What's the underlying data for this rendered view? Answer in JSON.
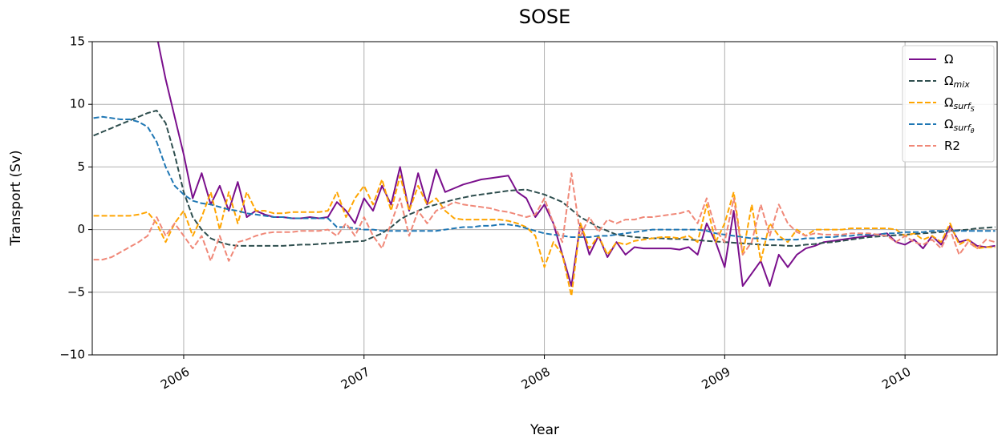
{
  "chart_data": {
    "type": "line",
    "title": "SOSE",
    "xlabel": "Year",
    "ylabel": "Transport (Sv)",
    "grid": true,
    "legend": "upper right",
    "xlim": [
      2005.493,
      2010.511
    ],
    "ylim": [
      -10,
      15
    ],
    "xticks": [
      2006,
      2007,
      2008,
      2009,
      2010
    ],
    "yticks": [
      {
        "value": -10,
        "label": "−10"
      },
      {
        "value": -5,
        "label": "−5"
      },
      0,
      5,
      10,
      15
    ],
    "x": [
      2005.5,
      2005.55,
      2005.6,
      2005.65,
      2005.7,
      2005.75,
      2005.8,
      2005.85,
      2005.9,
      2005.95,
      2006.0,
      2006.05,
      2006.1,
      2006.15,
      2006.2,
      2006.25,
      2006.3,
      2006.35,
      2006.4,
      2006.45,
      2006.5,
      2006.55,
      2006.6,
      2006.65,
      2006.7,
      2006.75,
      2006.8,
      2006.85,
      2006.9,
      2006.95,
      2007.0,
      2007.05,
      2007.1,
      2007.15,
      2007.2,
      2007.25,
      2007.3,
      2007.35,
      2007.4,
      2007.45,
      2007.5,
      2007.55,
      2007.6,
      2007.65,
      2007.7,
      2007.75,
      2007.8,
      2007.85,
      2007.9,
      2007.95,
      2008.0,
      2008.05,
      2008.1,
      2008.15,
      2008.2,
      2008.25,
      2008.3,
      2008.35,
      2008.4,
      2008.45,
      2008.5,
      2008.55,
      2008.6,
      2008.65,
      2008.7,
      2008.75,
      2008.8,
      2008.85,
      2008.9,
      2008.95,
      2009.0,
      2009.05,
      2009.1,
      2009.15,
      2009.2,
      2009.25,
      2009.3,
      2009.35,
      2009.4,
      2009.45,
      2009.5,
      2009.55,
      2009.6,
      2009.65,
      2009.7,
      2009.75,
      2009.8,
      2009.85,
      2009.9,
      2009.95,
      2010.0,
      2010.05,
      2010.1,
      2010.15,
      2010.2,
      2010.25,
      2010.3,
      2010.35,
      2010.4,
      2010.45,
      2010.5
    ],
    "series": [
      {
        "name": "Ω",
        "color": "#7a0f8c",
        "dash": false,
        "values": [
          null,
          null,
          null,
          null,
          null,
          null,
          null,
          15.5,
          12,
          9,
          6,
          2.5,
          4.5,
          2,
          3.5,
          1.5,
          3.8,
          1,
          1.5,
          1.2,
          1.0,
          1,
          0.9,
          0.9,
          1.0,
          0.9,
          1.0,
          2.2,
          1.5,
          0.5,
          2.5,
          1.5,
          3.5,
          2.0,
          5.0,
          1.5,
          4.5,
          2.0,
          4.8,
          3.0,
          3.3,
          3.6,
          3.8,
          4.0,
          4.1,
          4.2,
          4.3,
          3.0,
          2.5,
          1.0,
          2.0,
          0.5,
          -2.0,
          -4.5,
          0.5,
          -2.0,
          -0.5,
          -2.2,
          -1.0,
          -2.0,
          -1.4,
          -1.5,
          -1.5,
          -1.5,
          -1.5,
          -1.6,
          -1.4,
          -2.0,
          0.5,
          -1.0,
          -3.0,
          1.5,
          -4.5,
          -3.5,
          -2.5,
          -4.5,
          -2.0,
          -3.0,
          -2.0,
          -1.5,
          -1.3,
          -1.0,
          -0.9,
          -0.8,
          -0.7,
          -0.6,
          -0.5,
          -0.4,
          -0.3,
          -1.0,
          -1.2,
          -0.8,
          -1.5,
          -0.5,
          -1.2,
          0.3,
          -1.0,
          -0.8,
          -1.3,
          -1.4,
          -1.3
        ]
      },
      {
        "name": "Ω",
        "sub": "mix",
        "color": "#2f4f4f",
        "dash": true,
        "values": [
          7.5,
          7.8,
          8.1,
          8.4,
          8.7,
          9.0,
          9.3,
          9.5,
          8.5,
          6,
          3,
          1,
          0,
          -0.7,
          -1.0,
          -1.2,
          -1.3,
          -1.3,
          -1.3,
          -1.3,
          -1.3,
          -1.3,
          -1.25,
          -1.2,
          -1.2,
          -1.15,
          -1.1,
          -1.05,
          -1.0,
          -0.95,
          -0.9,
          -0.6,
          -0.3,
          0.2,
          0.8,
          1.2,
          1.5,
          1.8,
          2.0,
          2.2,
          2.4,
          2.55,
          2.7,
          2.8,
          2.9,
          3.0,
          3.1,
          3.15,
          3.2,
          3.0,
          2.8,
          2.5,
          2.2,
          1.6,
          1.0,
          0.6,
          0.2,
          -0.1,
          -0.4,
          -0.5,
          -0.6,
          -0.65,
          -0.7,
          -0.7,
          -0.75,
          -0.75,
          -0.8,
          -0.85,
          -0.9,
          -0.95,
          -1.0,
          -1.05,
          -1.1,
          -1.15,
          -1.2,
          -1.25,
          -1.25,
          -1.3,
          -1.3,
          -1.2,
          -1.15,
          -1.05,
          -1.0,
          -0.9,
          -0.8,
          -0.7,
          -0.6,
          -0.55,
          -0.5,
          -0.45,
          -0.4,
          -0.35,
          -0.3,
          -0.25,
          -0.2,
          -0.1,
          -0.05,
          0,
          0.1,
          0.15,
          0.2
        ]
      },
      {
        "name": "Ω",
        "sub": "surf",
        "sub2": "S",
        "color": "#ffa500",
        "dash": true,
        "values": [
          1.1,
          1.1,
          1.1,
          1.1,
          1.1,
          1.2,
          1.4,
          0.5,
          -1.0,
          0.5,
          1.5,
          -0.5,
          1.0,
          3.0,
          0,
          3.0,
          0.5,
          3.0,
          1.5,
          1.5,
          1.3,
          1.3,
          1.4,
          1.4,
          1.4,
          1.4,
          1.5,
          3.0,
          1.0,
          2.5,
          3.5,
          2.0,
          4.0,
          1.5,
          4.3,
          1.5,
          3.5,
          2.0,
          2.5,
          1.5,
          0.9,
          0.8,
          0.8,
          0.8,
          0.8,
          0.8,
          0.7,
          0.5,
          0.2,
          -0.5,
          -3.0,
          -1.0,
          -2.0,
          -5.3,
          0.5,
          -1.5,
          -0.5,
          -2.0,
          -1.0,
          -1.2,
          -0.9,
          -0.8,
          -0.7,
          -0.6,
          -0.6,
          -0.7,
          -0.5,
          -1.0,
          2.0,
          -1.0,
          0.5,
          3.0,
          -2.0,
          2.0,
          -2.5,
          0.5,
          -0.5,
          -1.0,
          0,
          -0.5,
          0,
          0,
          0,
          0,
          0.1,
          0.1,
          0.1,
          0.1,
          0.1,
          0.0,
          -0.5,
          -0.3,
          -0.8,
          -0.5,
          -1.0,
          0.5,
          -1.2,
          -0.8,
          -1.5,
          -1.4,
          -1.4
        ]
      },
      {
        "name": "Ω",
        "sub": "surf",
        "sub2": "θ",
        "color": "#1f77b4",
        "dash": true,
        "values": [
          8.9,
          9.0,
          8.9,
          8.8,
          8.8,
          8.6,
          8.2,
          7.0,
          5.0,
          3.5,
          2.8,
          2.3,
          2.1,
          2.0,
          1.8,
          1.6,
          1.5,
          1.3,
          1.2,
          1.1,
          1.0,
          1.0,
          0.9,
          0.9,
          0.9,
          0.9,
          0.9,
          0.2,
          0.2,
          0.1,
          0,
          0,
          -0.1,
          -0.1,
          -0.1,
          -0.1,
          -0.1,
          -0.1,
          -0.1,
          0,
          0.1,
          0.2,
          0.2,
          0.3,
          0.3,
          0.4,
          0.4,
          0.3,
          0.1,
          -0.1,
          -0.3,
          -0.4,
          -0.5,
          -0.6,
          -0.6,
          -0.6,
          -0.5,
          -0.5,
          -0.4,
          -0.3,
          -0.2,
          -0.1,
          0,
          0,
          0,
          0,
          0,
          0,
          -0.1,
          -0.3,
          -0.4,
          -0.5,
          -0.6,
          -0.7,
          -0.7,
          -0.8,
          -0.8,
          -0.8,
          -0.8,
          -0.7,
          -0.7,
          -0.6,
          -0.6,
          -0.5,
          -0.5,
          -0.4,
          -0.4,
          -0.4,
          -0.3,
          -0.3,
          -0.2,
          -0.2,
          -0.2,
          -0.1,
          -0.1,
          -0.1,
          -0.1,
          -0.1,
          -0.1,
          -0.1,
          -0.1
        ]
      },
      {
        "name": "R2",
        "color": "#f08878",
        "dash": true,
        "values": [
          -2.4,
          -2.4,
          -2.2,
          -1.8,
          -1.4,
          -1.0,
          -0.5,
          1.0,
          -0.5,
          0.5,
          -0.5,
          -1.5,
          -0.5,
          -2.5,
          -0.5,
          -2.5,
          -1.0,
          -0.8,
          -0.5,
          -0.3,
          -0.2,
          -0.2,
          -0.2,
          -0.1,
          -0.1,
          -0.1,
          0,
          -0.5,
          0.5,
          -0.5,
          1.0,
          -0.5,
          -1.5,
          0.5,
          2.5,
          -0.5,
          1.5,
          0.5,
          1.5,
          1.8,
          2.2,
          2.0,
          1.9,
          1.8,
          1.7,
          1.5,
          1.4,
          1.2,
          1.0,
          1.2,
          2.5,
          0.5,
          -1.0,
          4.5,
          -0.5,
          1.0,
          -0.2,
          0.8,
          0.5,
          0.8,
          0.8,
          1.0,
          1.0,
          1.1,
          1.2,
          1.3,
          1.5,
          0.5,
          2.5,
          0,
          -1.0,
          2.5,
          -2.0,
          -1.0,
          2.0,
          -0.5,
          2.0,
          0.5,
          -0.2,
          -0.5,
          -0.3,
          -0.4,
          -0.4,
          -0.4,
          -0.3,
          -0.3,
          -0.3,
          -0.4,
          -0.5,
          -1.0,
          -0.5,
          -1.0,
          -1.2,
          -0.8,
          -1.5,
          0,
          -2.0,
          -1.0,
          -1.5,
          -0.8,
          -1.0
        ]
      }
    ]
  }
}
